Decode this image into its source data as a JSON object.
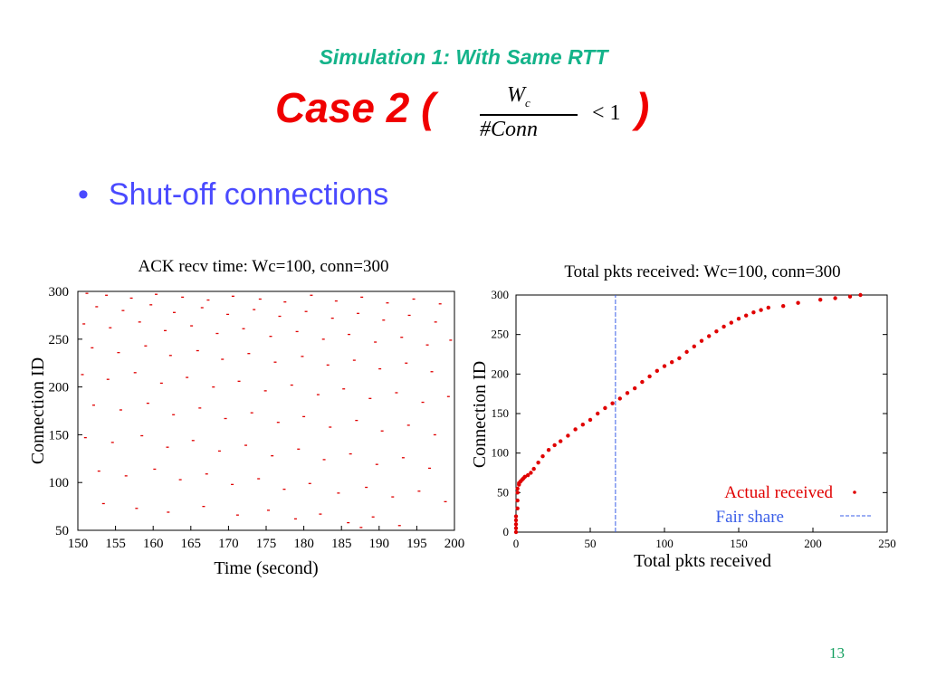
{
  "slide": {
    "subtitle": "Simulation 1: With Same RTT",
    "title_prefix": "Case 2 (",
    "title_suffix": ")",
    "formula": {
      "numerator": "W",
      "numerator_sub": "c",
      "denominator": "#Conn",
      "relation": "< 1"
    },
    "bullet": "Shut-off connections",
    "page_number": "13"
  },
  "colors": {
    "subtitle": "#14b38a",
    "title": "#f00000",
    "bullet": "#4a4aff",
    "actual": "#e00000",
    "fair_share": "#3a5ee8",
    "page_number": "#14a060"
  },
  "chart_data": [
    {
      "type": "scatter",
      "title": "ACK recv time: Wc=100, conn=300",
      "xlabel": "Time (second)",
      "ylabel": "Connection ID",
      "xlim": [
        150,
        200
      ],
      "ylim": [
        50,
        300
      ],
      "xticks": [
        150,
        155,
        160,
        165,
        170,
        175,
        180,
        185,
        190,
        195,
        200
      ],
      "yticks": [
        50,
        100,
        150,
        200,
        250,
        300
      ],
      "grid": false,
      "legend": "none",
      "series": [
        {
          "values": [
            [
              151.2,
              298
            ],
            [
              153.8,
              296
            ],
            [
              157.1,
              293
            ],
            [
              160.4,
              297
            ],
            [
              163.9,
              294
            ],
            [
              167.3,
              291
            ],
            [
              170.6,
              295
            ],
            [
              174.2,
              292
            ],
            [
              177.5,
              289
            ],
            [
              181.0,
              296
            ],
            [
              184.3,
              290
            ],
            [
              187.7,
              294
            ],
            [
              191.1,
              288
            ],
            [
              194.6,
              292
            ],
            [
              198.1,
              287
            ],
            [
              152.5,
              284
            ],
            [
              156.0,
              280
            ],
            [
              159.7,
              286
            ],
            [
              162.8,
              278
            ],
            [
              166.5,
              283
            ],
            [
              169.9,
              276
            ],
            [
              173.4,
              281
            ],
            [
              176.8,
              274
            ],
            [
              180.3,
              279
            ],
            [
              183.8,
              272
            ],
            [
              187.2,
              277
            ],
            [
              190.6,
              270
            ],
            [
              194.0,
              275
            ],
            [
              197.5,
              268
            ],
            [
              150.8,
              266
            ],
            [
              154.3,
              262
            ],
            [
              158.2,
              268
            ],
            [
              161.6,
              259
            ],
            [
              165.1,
              264
            ],
            [
              168.5,
              256
            ],
            [
              172.0,
              261
            ],
            [
              175.6,
              253
            ],
            [
              179.1,
              258
            ],
            [
              182.6,
              250
            ],
            [
              186.0,
              255
            ],
            [
              189.5,
              247
            ],
            [
              193.0,
              252
            ],
            [
              196.4,
              244
            ],
            [
              199.5,
              249
            ],
            [
              151.9,
              241
            ],
            [
              155.4,
              236
            ],
            [
              159.0,
              243
            ],
            [
              162.3,
              233
            ],
            [
              165.9,
              238
            ],
            [
              169.2,
              229
            ],
            [
              172.7,
              235
            ],
            [
              176.2,
              226
            ],
            [
              179.8,
              232
            ],
            [
              183.2,
              223
            ],
            [
              186.7,
              228
            ],
            [
              190.1,
              219
            ],
            [
              193.6,
              225
            ],
            [
              197.0,
              216
            ],
            [
              150.6,
              213
            ],
            [
              154.0,
              208
            ],
            [
              157.6,
              215
            ],
            [
              161.1,
              204
            ],
            [
              164.5,
              210
            ],
            [
              168.0,
              200
            ],
            [
              171.4,
              206
            ],
            [
              174.9,
              196
            ],
            [
              178.4,
              202
            ],
            [
              181.9,
              192
            ],
            [
              185.3,
              198
            ],
            [
              188.8,
              188
            ],
            [
              192.3,
              194
            ],
            [
              195.8,
              184
            ],
            [
              199.2,
              190
            ],
            [
              152.1,
              181
            ],
            [
              155.7,
              176
            ],
            [
              159.3,
              183
            ],
            [
              162.7,
              171
            ],
            [
              166.2,
              178
            ],
            [
              169.6,
              167
            ],
            [
              173.1,
              173
            ],
            [
              176.6,
              163
            ],
            [
              180.0,
              169
            ],
            [
              183.5,
              158
            ],
            [
              187.0,
              165
            ],
            [
              190.4,
              154
            ],
            [
              193.9,
              160
            ],
            [
              197.4,
              150
            ],
            [
              151.0,
              147
            ],
            [
              154.6,
              142
            ],
            [
              158.5,
              149
            ],
            [
              161.9,
              137
            ],
            [
              165.3,
              144
            ],
            [
              168.8,
              133
            ],
            [
              172.3,
              139
            ],
            [
              175.8,
              128
            ],
            [
              179.3,
              135
            ],
            [
              182.7,
              124
            ],
            [
              186.2,
              130
            ],
            [
              189.7,
              119
            ],
            [
              193.2,
              126
            ],
            [
              196.7,
              115
            ],
            [
              152.8,
              112
            ],
            [
              156.4,
              107
            ],
            [
              160.2,
              114
            ],
            [
              163.6,
              103
            ],
            [
              167.1,
              109
            ],
            [
              170.5,
              98
            ],
            [
              174.0,
              104
            ],
            [
              177.4,
              93
            ],
            [
              180.8,
              99
            ],
            [
              184.6,
              89
            ],
            [
              188.3,
              95
            ],
            [
              191.8,
              85
            ],
            [
              195.3,
              91
            ],
            [
              198.8,
              80
            ],
            [
              153.4,
              78
            ],
            [
              157.8,
              73
            ],
            [
              162.0,
              69
            ],
            [
              166.7,
              75
            ],
            [
              171.2,
              66
            ],
            [
              175.3,
              71
            ],
            [
              178.9,
              62
            ],
            [
              182.2,
              67
            ],
            [
              185.9,
              58
            ],
            [
              189.2,
              64
            ],
            [
              192.7,
              55
            ],
            [
              187.6,
              53
            ]
          ]
        }
      ]
    },
    {
      "type": "scatter",
      "title": "Total pkts received: Wc=100, conn=300",
      "xlabel": "Total pkts received",
      "ylabel": "Connection ID",
      "xlim": [
        0,
        250
      ],
      "ylim": [
        0,
        300
      ],
      "xticks": [
        0,
        50,
        100,
        150,
        200,
        250
      ],
      "yticks": [
        0,
        50,
        100,
        150,
        200,
        250,
        300
      ],
      "grid": false,
      "legend": "bottom-right",
      "series": [
        {
          "name": "Actual received",
          "x": [
            0,
            0,
            0,
            0,
            0,
            1,
            1,
            1,
            1,
            2,
            2,
            3,
            4,
            5,
            6,
            8,
            10,
            12,
            15,
            18,
            22,
            26,
            30,
            35,
            40,
            45,
            50,
            55,
            60,
            65,
            70,
            75,
            80,
            85,
            90,
            95,
            100,
            105,
            110,
            115,
            120,
            125,
            130,
            135,
            140,
            145,
            150,
            155,
            160,
            165,
            170,
            180,
            190,
            205,
            215,
            225,
            232
          ],
          "y": [
            0,
            5,
            10,
            15,
            20,
            30,
            40,
            50,
            55,
            60,
            62,
            64,
            66,
            68,
            70,
            72,
            75,
            80,
            88,
            96,
            104,
            110,
            115,
            122,
            130,
            136,
            142,
            150,
            157,
            163,
            169,
            176,
            182,
            190,
            197,
            204,
            210,
            215,
            220,
            228,
            235,
            242,
            248,
            254,
            260,
            265,
            270,
            274,
            278,
            281,
            284,
            286,
            290,
            294,
            296,
            298,
            300
          ]
        },
        {
          "name": "Fair share",
          "type": "vline",
          "x": 67
        }
      ]
    }
  ]
}
